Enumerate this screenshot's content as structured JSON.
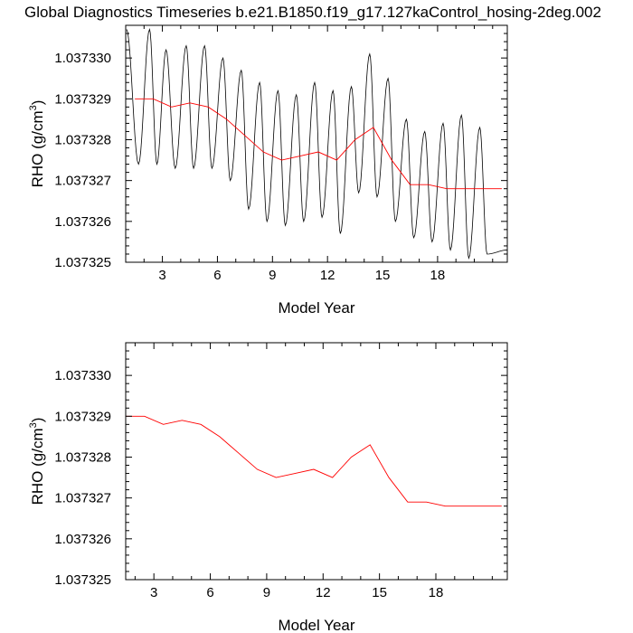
{
  "title": "Global Diagnostics Timeseries b.e21.B1850.f19_g17.127kaControl_hosing-2deg.002",
  "colors": {
    "monthly_line": "#000000",
    "annual_line": "#ff0000",
    "axis": "#000000"
  },
  "chart_data": [
    {
      "type": "line",
      "xlabel": "Model Year",
      "ylabel_main": "RHO (g/cm",
      "ylabel_sup": "3",
      "ylabel_close": ")",
      "xlim": [
        1,
        21.8
      ],
      "ylim": [
        1.037325,
        1.0373308
      ],
      "xticks": [
        3,
        6,
        9,
        12,
        15,
        18
      ],
      "xtick_labels": [
        "3",
        "6",
        "9",
        "12",
        "15",
        "18"
      ],
      "yticks": [
        1.037325,
        1.037326,
        1.037327,
        1.037328,
        1.037329,
        1.03733
      ],
      "ytick_labels": [
        "1.037325",
        "1.037326",
        "1.037327",
        "1.037328",
        "1.037329",
        "1.037330"
      ],
      "series": [
        {
          "kind": "monthly",
          "peaks": [
            [
              1.05,
              1.0373307
            ],
            [
              2.3,
              1.0373307
            ],
            [
              3.2,
              1.0373302
            ],
            [
              4.3,
              1.0373303
            ],
            [
              5.3,
              1.0373303
            ],
            [
              6.3,
              1.03733
            ],
            [
              7.3,
              1.0373297
            ],
            [
              8.3,
              1.0373294
            ],
            [
              9.3,
              1.0373292
            ],
            [
              10.3,
              1.0373291
            ],
            [
              11.3,
              1.0373294
            ],
            [
              12.3,
              1.0373292
            ],
            [
              13.3,
              1.0373293
            ],
            [
              14.3,
              1.0373301
            ],
            [
              15.3,
              1.0373295
            ],
            [
              16.3,
              1.0373285
            ],
            [
              17.3,
              1.0373282
            ],
            [
              18.3,
              1.0373284
            ],
            [
              19.3,
              1.0373286
            ],
            [
              20.3,
              1.0373283
            ]
          ],
          "troughs": [
            [
              1.7,
              1.0373274
            ],
            [
              2.7,
              1.0373274
            ],
            [
              3.7,
              1.0373273
            ],
            [
              4.7,
              1.0373273
            ],
            [
              5.7,
              1.0373273
            ],
            [
              6.7,
              1.037327
            ],
            [
              7.7,
              1.0373263
            ],
            [
              8.7,
              1.037326
            ],
            [
              9.7,
              1.0373259
            ],
            [
              10.7,
              1.037326
            ],
            [
              11.7,
              1.0373261
            ],
            [
              12.7,
              1.0373257
            ],
            [
              13.7,
              1.0373267
            ],
            [
              14.7,
              1.0373266
            ],
            [
              15.7,
              1.037326
            ],
            [
              16.7,
              1.0373256
            ],
            [
              17.7,
              1.0373255
            ],
            [
              18.7,
              1.0373253
            ],
            [
              19.7,
              1.0373251
            ],
            [
              20.7,
              1.0373252
            ]
          ],
          "end": [
            21.8,
            1.0373253
          ]
        },
        {
          "kind": "annual",
          "x": [
            1.5,
            2.5,
            3.5,
            4.5,
            5.5,
            6.5,
            7.5,
            8.5,
            9.5,
            10.5,
            11.5,
            12.5,
            13.5,
            14.5,
            15.5,
            16.5,
            17.5,
            18.5,
            19.5,
            20.5,
            21.5
          ],
          "values": [
            1.037329,
            1.037329,
            1.0373288,
            1.0373289,
            1.0373288,
            1.0373285,
            1.0373281,
            1.0373277,
            1.0373275,
            1.0373276,
            1.0373277,
            1.0373275,
            1.037328,
            1.0373283,
            1.0373275,
            1.0373269,
            1.0373269,
            1.0373268,
            1.0373268,
            1.0373268,
            1.0373268
          ]
        }
      ]
    },
    {
      "type": "line",
      "xlabel": "Model Year",
      "ylabel_main": "RHO (g/cm",
      "ylabel_sup": "3",
      "ylabel_close": ")",
      "xlim": [
        1.5,
        21.8
      ],
      "ylim": [
        1.037325,
        1.0373308
      ],
      "xticks": [
        3,
        6,
        9,
        12,
        15,
        18
      ],
      "xtick_labels": [
        "3",
        "6",
        "9",
        "12",
        "15",
        "18"
      ],
      "yticks": [
        1.037325,
        1.037326,
        1.037327,
        1.037328,
        1.037329,
        1.03733
      ],
      "ytick_labels": [
        "1.037325",
        "1.037326",
        "1.037327",
        "1.037328",
        "1.037329",
        "1.037330"
      ],
      "series": [
        {
          "kind": "annual",
          "x": [
            1.5,
            2.5,
            3.5,
            4.5,
            5.5,
            6.5,
            7.5,
            8.5,
            9.5,
            10.5,
            11.5,
            12.5,
            13.5,
            14.5,
            15.5,
            16.5,
            17.5,
            18.5,
            19.5,
            20.5,
            21.5
          ],
          "values": [
            1.037329,
            1.037329,
            1.0373288,
            1.0373289,
            1.0373288,
            1.0373285,
            1.0373281,
            1.0373277,
            1.0373275,
            1.0373276,
            1.0373277,
            1.0373275,
            1.037328,
            1.0373283,
            1.0373275,
            1.0373269,
            1.0373269,
            1.0373268,
            1.0373268,
            1.0373268,
            1.0373268
          ]
        }
      ]
    }
  ]
}
